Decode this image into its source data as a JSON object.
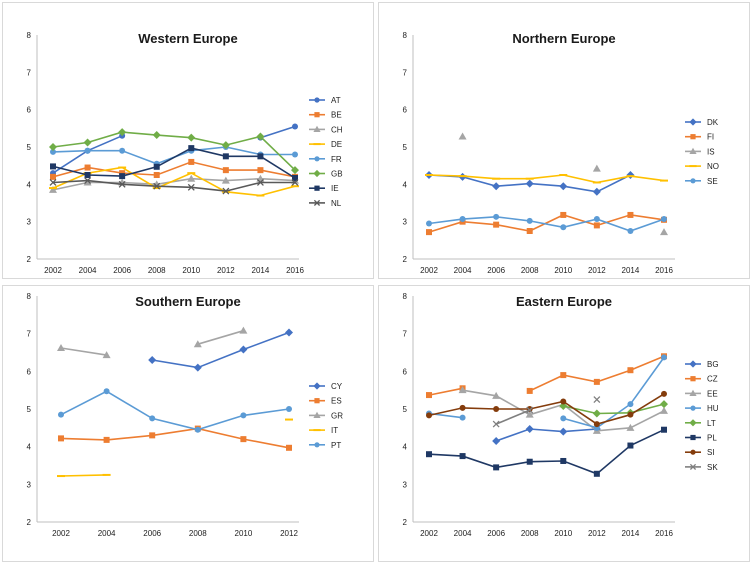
{
  "chart_data": [
    {
      "type": "line",
      "title": "Western Europe",
      "x": [
        2002,
        2004,
        2006,
        2008,
        2010,
        2012,
        2014,
        2016
      ],
      "ylim": [
        2,
        8
      ],
      "yticks": [
        "2",
        "3",
        "4",
        "5",
        "6",
        "7",
        "8"
      ],
      "xticks": [
        "2002",
        "2004",
        "2006",
        "2008",
        "2010",
        "2012",
        "2014",
        "2016"
      ],
      "legend_position": "right",
      "series": [
        {
          "name": "AT",
          "color": "#4472c4",
          "marker": "circle",
          "values": [
            4.3,
            4.9,
            5.3,
            null,
            null,
            null,
            5.25,
            5.55
          ]
        },
        {
          "name": "BE",
          "color": "#ed7d31",
          "marker": "square",
          "values": [
            4.2,
            4.45,
            4.3,
            4.25,
            4.6,
            4.38,
            4.38,
            4.2
          ]
        },
        {
          "name": "CH",
          "color": "#a5a5a5",
          "marker": "triangle",
          "values": [
            3.85,
            4.05,
            4.05,
            4.0,
            4.15,
            4.1,
            4.15,
            4.1
          ]
        },
        {
          "name": "DE",
          "color": "#ffc000",
          "marker": "dash",
          "values": [
            3.9,
            4.3,
            4.45,
            3.9,
            4.3,
            3.8,
            3.7,
            3.95
          ]
        },
        {
          "name": "FR",
          "color": "#5b9bd5",
          "marker": "circle",
          "values": [
            4.87,
            4.9,
            4.9,
            4.55,
            4.9,
            5.0,
            4.8,
            4.8
          ]
        },
        {
          "name": "GB",
          "color": "#70ad47",
          "marker": "diamond",
          "values": [
            5.0,
            5.12,
            5.4,
            5.32,
            5.25,
            5.05,
            5.28,
            4.38
          ]
        },
        {
          "name": "IE",
          "color": "#1f3864",
          "marker": "square",
          "values": [
            4.48,
            4.25,
            4.22,
            4.47,
            4.97,
            4.75,
            4.75,
            4.17
          ]
        },
        {
          "name": "NL",
          "color": "#595959",
          "marker": "x",
          "values": [
            4.05,
            4.1,
            4.0,
            3.95,
            3.92,
            3.82,
            4.05,
            4.05
          ]
        }
      ]
    },
    {
      "type": "line",
      "title": "Northern Europe",
      "x": [
        2002,
        2004,
        2006,
        2008,
        2010,
        2012,
        2014,
        2016
      ],
      "ylim": [
        2,
        8
      ],
      "yticks": [
        "2",
        "3",
        "4",
        "5",
        "6",
        "7",
        "8"
      ],
      "xticks": [
        "2002",
        "2004",
        "2006",
        "2008",
        "2010",
        "2012",
        "2014",
        "2016"
      ],
      "legend_position": "right",
      "series": [
        {
          "name": "DK",
          "color": "#4472c4",
          "marker": "diamond",
          "values": [
            4.25,
            4.2,
            3.95,
            4.02,
            3.95,
            3.8,
            4.25,
            null
          ]
        },
        {
          "name": "FI",
          "color": "#ed7d31",
          "marker": "square",
          "values": [
            2.72,
            3.0,
            2.92,
            2.75,
            3.18,
            2.9,
            3.18,
            3.05
          ]
        },
        {
          "name": "IS",
          "color": "#a5a5a5",
          "marker": "triangle",
          "values": [
            null,
            5.28,
            null,
            null,
            null,
            4.42,
            null,
            2.72
          ]
        },
        {
          "name": "NO",
          "color": "#ffc000",
          "marker": "dash",
          "values": [
            4.25,
            4.22,
            4.15,
            4.15,
            4.25,
            4.05,
            4.22,
            4.1
          ]
        },
        {
          "name": "SE",
          "color": "#5b9bd5",
          "marker": "circle",
          "values": [
            2.95,
            3.07,
            3.13,
            3.02,
            2.85,
            3.07,
            2.75,
            3.07
          ]
        }
      ]
    },
    {
      "type": "line",
      "title": "Southern Europe",
      "x": [
        2002,
        2004,
        2006,
        2008,
        2010,
        2012
      ],
      "ylim": [
        2,
        8
      ],
      "yticks": [
        "2",
        "3",
        "4",
        "5",
        "6",
        "7",
        "8"
      ],
      "xticks": [
        "2002",
        "2004",
        "2006",
        "2008",
        "2010",
        "2012"
      ],
      "legend_position": "right",
      "series": [
        {
          "name": "CY",
          "color": "#4472c4",
          "marker": "diamond",
          "values": [
            null,
            null,
            6.3,
            6.1,
            6.58,
            7.03
          ]
        },
        {
          "name": "ES",
          "color": "#ed7d31",
          "marker": "square",
          "values": [
            4.22,
            4.18,
            4.3,
            4.48,
            4.2,
            3.97
          ]
        },
        {
          "name": "GR",
          "color": "#a5a5a5",
          "marker": "triangle",
          "values": [
            6.62,
            6.43,
            null,
            6.72,
            7.08,
            null
          ]
        },
        {
          "name": "IT",
          "color": "#ffc000",
          "marker": "dash",
          "values": [
            3.22,
            3.25,
            null,
            null,
            null,
            4.72
          ]
        },
        {
          "name": "PT",
          "color": "#5b9bd5",
          "marker": "circle",
          "values": [
            4.85,
            5.47,
            4.75,
            4.45,
            4.83,
            5.0
          ]
        }
      ]
    },
    {
      "type": "line",
      "title": "Eastern Europe",
      "x": [
        2002,
        2004,
        2006,
        2008,
        2010,
        2012,
        2014,
        2016
      ],
      "ylim": [
        2,
        8
      ],
      "yticks": [
        "2",
        "3",
        "4",
        "5",
        "6",
        "7",
        "8"
      ],
      "xticks": [
        "2002",
        "2004",
        "2006",
        "2008",
        "2010",
        "2012",
        "2014",
        "2016"
      ],
      "legend_position": "right",
      "series": [
        {
          "name": "BG",
          "color": "#4472c4",
          "marker": "diamond",
          "values": [
            null,
            null,
            4.15,
            4.47,
            4.4,
            4.47,
            null,
            null
          ]
        },
        {
          "name": "CZ",
          "color": "#ed7d31",
          "marker": "square",
          "values": [
            5.37,
            5.55,
            null,
            5.48,
            5.9,
            5.72,
            6.03,
            6.4
          ]
        },
        {
          "name": "EE",
          "color": "#a5a5a5",
          "marker": "triangle",
          "values": [
            null,
            5.5,
            5.35,
            4.85,
            5.12,
            4.42,
            4.5,
            4.95
          ]
        },
        {
          "name": "HU",
          "color": "#5b9bd5",
          "marker": "circle",
          "values": [
            4.88,
            4.77,
            null,
            null,
            4.75,
            4.5,
            5.13,
            6.37
          ]
        },
        {
          "name": "LT",
          "color": "#70ad47",
          "marker": "diamond",
          "values": [
            null,
            null,
            null,
            null,
            5.08,
            4.88,
            4.9,
            5.13
          ]
        },
        {
          "name": "PL",
          "color": "#1f3864",
          "marker": "square",
          "values": [
            3.8,
            3.75,
            3.45,
            3.6,
            3.62,
            3.28,
            4.03,
            4.45
          ]
        },
        {
          "name": "SI",
          "color": "#843c0c",
          "marker": "circle",
          "values": [
            4.83,
            5.03,
            5.0,
            5.0,
            5.2,
            4.6,
            4.85,
            5.4
          ]
        },
        {
          "name": "SK",
          "color": "#7f7f7f",
          "marker": "x",
          "values": [
            null,
            null,
            4.6,
            4.97,
            null,
            5.25,
            null,
            null
          ]
        }
      ]
    }
  ]
}
